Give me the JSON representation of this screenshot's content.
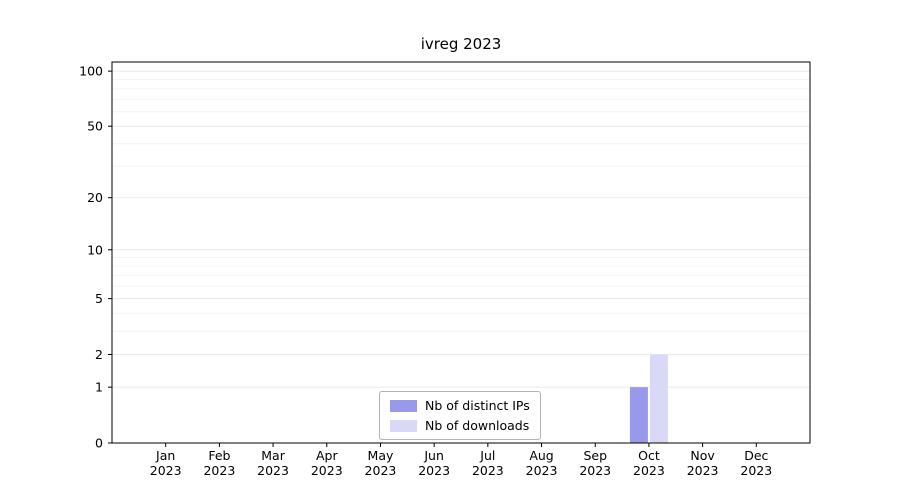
{
  "chart_data": {
    "type": "bar",
    "title": "ivreg 2023",
    "months": [
      "Jan",
      "Feb",
      "Mar",
      "Apr",
      "May",
      "Jun",
      "Jul",
      "Aug",
      "Sep",
      "Oct",
      "Nov",
      "Dec"
    ],
    "year": "2023",
    "y_ticks": [
      0,
      1,
      2,
      5,
      10,
      20,
      50,
      100
    ],
    "y_minor_ticks": [
      3,
      4,
      6,
      7,
      8,
      9,
      30,
      40,
      60,
      70,
      80,
      90
    ],
    "y_scale": "log1p",
    "ylim": [
      0,
      100
    ],
    "grid": true,
    "legend_position": "bottom-center",
    "series": [
      {
        "name": "Nb of distinct IPs",
        "color": "#9999ec",
        "values": [
          0,
          0,
          0,
          0,
          0,
          0,
          0,
          0,
          0,
          1,
          0,
          0
        ]
      },
      {
        "name": "Nb of downloads",
        "color": "#d9d9f7",
        "values": [
          0,
          0,
          0,
          0,
          0,
          0,
          0,
          0,
          0,
          2,
          0,
          0
        ]
      }
    ]
  }
}
